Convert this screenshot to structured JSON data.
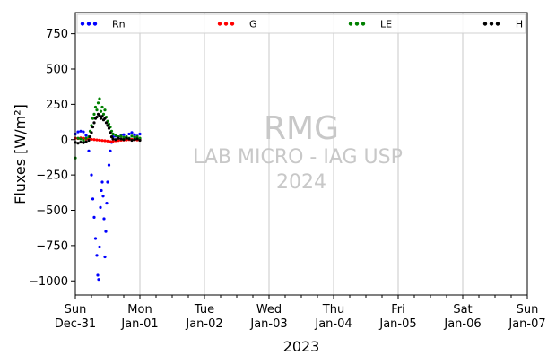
{
  "chart_data": {
    "type": "scatter",
    "ylabel": "Fluxes [W/m²]",
    "xlabel": "2023",
    "ylim": [
      -1100,
      900
    ],
    "xlim": [
      "2023-12-31 00:00",
      "2024-01-07 00:00"
    ],
    "yticks": [
      750,
      500,
      250,
      0,
      -250,
      -500,
      -750,
      -1000
    ],
    "xticks": [
      {
        "day": "Sun",
        "date": "Dec-31"
      },
      {
        "day": "Mon",
        "date": "Jan-01"
      },
      {
        "day": "Tue",
        "date": "Jan-02"
      },
      {
        "day": "Wed",
        "date": "Jan-03"
      },
      {
        "day": "Thu",
        "date": "Jan-04"
      },
      {
        "day": "Fri",
        "date": "Jan-05"
      },
      {
        "day": "Sat",
        "date": "Jan-06"
      },
      {
        "day": "Sun",
        "date": "Jan-07"
      }
    ],
    "grid": "vertical at day ticks",
    "legend_placement": "top, horizontal",
    "watermark": [
      "RMG",
      "LAB MICRO - IAG USP",
      "2024"
    ],
    "series": [
      {
        "name": "Rn",
        "color": "#0000ff",
        "points": [
          {
            "x": "2023-12-31 00:00",
            "y": 40
          },
          {
            "x": "2023-12-31 01:00",
            "y": 55
          },
          {
            "x": "2023-12-31 02:00",
            "y": 60
          },
          {
            "x": "2023-12-31 03:00",
            "y": 55
          },
          {
            "x": "2023-12-31 04:00",
            "y": 30
          },
          {
            "x": "2023-12-31 05:00",
            "y": -80
          },
          {
            "x": "2023-12-31 06:00",
            "y": -250
          },
          {
            "x": "2023-12-31 06:30",
            "y": -420
          },
          {
            "x": "2023-12-31 07:00",
            "y": -550
          },
          {
            "x": "2023-12-31 07:30",
            "y": -700
          },
          {
            "x": "2023-12-31 08:00",
            "y": -820
          },
          {
            "x": "2023-12-31 08:20",
            "y": -960
          },
          {
            "x": "2023-12-31 08:40",
            "y": -990
          },
          {
            "x": "2023-12-31 09:00",
            "y": -760
          },
          {
            "x": "2023-12-31 09:20",
            "y": -480
          },
          {
            "x": "2023-12-31 09:40",
            "y": -360
          },
          {
            "x": "2023-12-31 10:00",
            "y": -300
          },
          {
            "x": "2023-12-31 10:20",
            "y": -400
          },
          {
            "x": "2023-12-31 10:40",
            "y": -560
          },
          {
            "x": "2023-12-31 11:00",
            "y": -830
          },
          {
            "x": "2023-12-31 11:20",
            "y": -650
          },
          {
            "x": "2023-12-31 11:40",
            "y": -450
          },
          {
            "x": "2023-12-31 12:00",
            "y": -300
          },
          {
            "x": "2023-12-31 12:30",
            "y": -180
          },
          {
            "x": "2023-12-31 13:00",
            "y": -80
          },
          {
            "x": "2023-12-31 13:30",
            "y": -20
          },
          {
            "x": "2023-12-31 14:00",
            "y": 20
          },
          {
            "x": "2023-12-31 15:00",
            "y": 25
          },
          {
            "x": "2023-12-31 16:00",
            "y": 20
          },
          {
            "x": "2023-12-31 17:00",
            "y": 30
          },
          {
            "x": "2023-12-31 18:00",
            "y": 35
          },
          {
            "x": "2023-12-31 19:00",
            "y": 20
          },
          {
            "x": "2023-12-31 20:00",
            "y": 40
          },
          {
            "x": "2023-12-31 21:00",
            "y": 50
          },
          {
            "x": "2023-12-31 22:00",
            "y": 35
          },
          {
            "x": "2023-12-31 23:00",
            "y": 25
          },
          {
            "x": "2024-01-01 00:00",
            "y": 40
          }
        ]
      },
      {
        "name": "G",
        "color": "#ff0000",
        "points": [
          {
            "x": "2023-12-31 00:00",
            "y": 10
          },
          {
            "x": "2023-12-31 01:00",
            "y": 8
          },
          {
            "x": "2023-12-31 02:00",
            "y": 12
          },
          {
            "x": "2023-12-31 03:00",
            "y": 10
          },
          {
            "x": "2023-12-31 04:00",
            "y": 5
          },
          {
            "x": "2023-12-31 05:00",
            "y": 3
          },
          {
            "x": "2023-12-31 06:00",
            "y": 2
          },
          {
            "x": "2023-12-31 07:00",
            "y": 0
          },
          {
            "x": "2023-12-31 08:00",
            "y": -2
          },
          {
            "x": "2023-12-31 09:00",
            "y": -4
          },
          {
            "x": "2023-12-31 10:00",
            "y": -6
          },
          {
            "x": "2023-12-31 11:00",
            "y": -8
          },
          {
            "x": "2023-12-31 12:00",
            "y": -10
          },
          {
            "x": "2023-12-31 13:00",
            "y": -14
          },
          {
            "x": "2023-12-31 14:00",
            "y": -12
          },
          {
            "x": "2023-12-31 15:00",
            "y": -8
          },
          {
            "x": "2023-12-31 16:00",
            "y": -6
          },
          {
            "x": "2023-12-31 17:00",
            "y": -4
          },
          {
            "x": "2023-12-31 18:00",
            "y": -3
          },
          {
            "x": "2023-12-31 19:00",
            "y": -2
          },
          {
            "x": "2023-12-31 20:00",
            "y": 0
          },
          {
            "x": "2023-12-31 21:00",
            "y": 2
          },
          {
            "x": "2023-12-31 22:00",
            "y": 0
          },
          {
            "x": "2023-12-31 23:00",
            "y": -2
          },
          {
            "x": "2024-01-01 00:00",
            "y": 0
          }
        ]
      },
      {
        "name": "LE",
        "color": "#008000",
        "points": [
          {
            "x": "2023-12-31 00:00",
            "y": -130
          },
          {
            "x": "2023-12-31 01:00",
            "y": 10
          },
          {
            "x": "2023-12-31 02:00",
            "y": 5
          },
          {
            "x": "2023-12-31 03:00",
            "y": -5
          },
          {
            "x": "2023-12-31 04:00",
            "y": 10
          },
          {
            "x": "2023-12-31 05:00",
            "y": 20
          },
          {
            "x": "2023-12-31 05:30",
            "y": 60
          },
          {
            "x": "2023-12-31 06:00",
            "y": 100
          },
          {
            "x": "2023-12-31 06:30",
            "y": 150
          },
          {
            "x": "2023-12-31 07:00",
            "y": 180
          },
          {
            "x": "2023-12-31 07:30",
            "y": 230
          },
          {
            "x": "2023-12-31 08:00",
            "y": 210
          },
          {
            "x": "2023-12-31 08:30",
            "y": 260
          },
          {
            "x": "2023-12-31 09:00",
            "y": 290
          },
          {
            "x": "2023-12-31 09:30",
            "y": 200
          },
          {
            "x": "2023-12-31 10:00",
            "y": 230
          },
          {
            "x": "2023-12-31 10:30",
            "y": 180
          },
          {
            "x": "2023-12-31 11:00",
            "y": 210
          },
          {
            "x": "2023-12-31 11:30",
            "y": 160
          },
          {
            "x": "2023-12-31 12:00",
            "y": 130
          },
          {
            "x": "2023-12-31 12:30",
            "y": 110
          },
          {
            "x": "2023-12-31 13:00",
            "y": 90
          },
          {
            "x": "2023-12-31 13:30",
            "y": 60
          },
          {
            "x": "2023-12-31 14:00",
            "y": 40
          },
          {
            "x": "2023-12-31 15:00",
            "y": 30
          },
          {
            "x": "2023-12-31 16:00",
            "y": 20
          },
          {
            "x": "2023-12-31 17:00",
            "y": 25
          },
          {
            "x": "2023-12-31 18:00",
            "y": 15
          },
          {
            "x": "2023-12-31 19:00",
            "y": 20
          },
          {
            "x": "2023-12-31 20:00",
            "y": 10
          },
          {
            "x": "2023-12-31 21:00",
            "y": 25
          },
          {
            "x": "2023-12-31 22:00",
            "y": 15
          },
          {
            "x": "2023-12-31 23:00",
            "y": 20
          },
          {
            "x": "2024-01-01 00:00",
            "y": 10
          }
        ]
      },
      {
        "name": "H",
        "color": "#000000",
        "points": [
          {
            "x": "2023-12-31 00:00",
            "y": -20
          },
          {
            "x": "2023-12-31 01:00",
            "y": -25
          },
          {
            "x": "2023-12-31 02:00",
            "y": -18
          },
          {
            "x": "2023-12-31 03:00",
            "y": -22
          },
          {
            "x": "2023-12-31 04:00",
            "y": -15
          },
          {
            "x": "2023-12-31 05:00",
            "y": -5
          },
          {
            "x": "2023-12-31 05:30",
            "y": 20
          },
          {
            "x": "2023-12-31 06:00",
            "y": 50
          },
          {
            "x": "2023-12-31 06:30",
            "y": 90
          },
          {
            "x": "2023-12-31 07:00",
            "y": 120
          },
          {
            "x": "2023-12-31 07:30",
            "y": 150
          },
          {
            "x": "2023-12-31 08:00",
            "y": 160
          },
          {
            "x": "2023-12-31 08:30",
            "y": 180
          },
          {
            "x": "2023-12-31 09:00",
            "y": 170
          },
          {
            "x": "2023-12-31 09:30",
            "y": 150
          },
          {
            "x": "2023-12-31 10:00",
            "y": 165
          },
          {
            "x": "2023-12-31 10:30",
            "y": 140
          },
          {
            "x": "2023-12-31 11:00",
            "y": 150
          },
          {
            "x": "2023-12-31 11:30",
            "y": 120
          },
          {
            "x": "2023-12-31 12:00",
            "y": 100
          },
          {
            "x": "2023-12-31 12:30",
            "y": 80
          },
          {
            "x": "2023-12-31 13:00",
            "y": 50
          },
          {
            "x": "2023-12-31 13:30",
            "y": 20
          },
          {
            "x": "2023-12-31 14:00",
            "y": 5
          },
          {
            "x": "2023-12-31 15:00",
            "y": 0
          },
          {
            "x": "2023-12-31 16:00",
            "y": 10
          },
          {
            "x": "2023-12-31 17:00",
            "y": 5
          },
          {
            "x": "2023-12-31 18:00",
            "y": 0
          },
          {
            "x": "2023-12-31 19:00",
            "y": 10
          },
          {
            "x": "2023-12-31 20:00",
            "y": 5
          },
          {
            "x": "2023-12-31 21:00",
            "y": -5
          },
          {
            "x": "2023-12-31 22:00",
            "y": 0
          },
          {
            "x": "2023-12-31 23:00",
            "y": 5
          },
          {
            "x": "2024-01-01 00:00",
            "y": -5
          }
        ]
      }
    ]
  }
}
